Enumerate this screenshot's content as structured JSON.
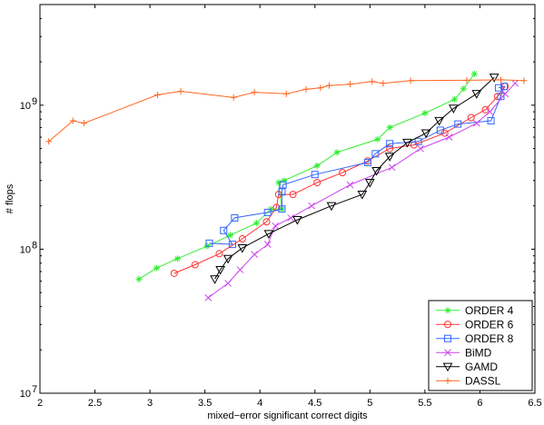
{
  "chart_data": {
    "type": "line",
    "xlabel": "mixed−error significant correct digits",
    "ylabel": "# flops",
    "xlim": [
      2,
      6.5
    ],
    "ylim": [
      10000000,
      5000000000
    ],
    "yscale": "log",
    "x_ticks": [
      2,
      2.5,
      3,
      3.5,
      4,
      4.5,
      5,
      5.5,
      6,
      6.5
    ],
    "x_tick_labels": [
      "2",
      "2.5",
      "3",
      "3.5",
      "4",
      "4.5",
      "5",
      "5.5",
      "6",
      "6.5"
    ],
    "y_ticks": [
      10000000,
      100000000,
      1000000000
    ],
    "y_tick_labels": [
      {
        "base": "10",
        "exp": "7"
      },
      {
        "base": "10",
        "exp": "8"
      },
      {
        "base": "10",
        "exp": "9"
      }
    ],
    "grid": false,
    "legend_position": "bottom-right",
    "series": [
      {
        "name": "ORDER 4",
        "color": "#33ee33",
        "marker": "asterisk",
        "x": [
          2.9,
          3.06,
          3.25,
          3.52,
          3.73,
          3.97,
          4.1,
          4.2,
          4.17,
          4.22,
          4.52,
          4.7,
          5.07,
          5.18,
          5.5,
          5.77,
          5.85,
          5.95
        ],
        "y": [
          62000000,
          74000000,
          86000000,
          105000000,
          125000000,
          152000000,
          190000000,
          190000000,
          290000000,
          300000000,
          380000000,
          470000000,
          580000000,
          700000000,
          880000000,
          1100000000,
          1300000000,
          1650000000
        ]
      },
      {
        "name": "ORDER 6",
        "color": "#ff3333",
        "marker": "circle",
        "x": [
          3.22,
          3.41,
          3.63,
          3.84,
          4.06,
          4.15,
          4.17,
          4.3,
          4.52,
          4.75,
          4.98,
          5.18,
          5.4,
          5.68,
          5.92,
          6.05,
          6.16,
          6.23
        ],
        "y": [
          68000000,
          78000000,
          93000000,
          118000000,
          155000000,
          195000000,
          240000000,
          240000000,
          290000000,
          340000000,
          410000000,
          500000000,
          530000000,
          640000000,
          820000000,
          930000000,
          1150000000,
          1350000000
        ]
      },
      {
        "name": "ORDER 8",
        "color": "#3366ff",
        "marker": "square",
        "x": [
          3.54,
          3.75,
          3.67,
          3.77,
          4.07,
          4.2,
          4.2,
          4.21,
          4.5,
          4.98,
          5.05,
          5.18,
          5.44,
          5.64,
          5.8,
          6.1,
          6.19,
          6.22,
          6.17
        ],
        "y": [
          110000000,
          108000000,
          135000000,
          165000000,
          180000000,
          190000000,
          250000000,
          280000000,
          330000000,
          400000000,
          460000000,
          540000000,
          560000000,
          670000000,
          740000000,
          780000000,
          1150000000,
          1350000000,
          1320000000
        ]
      },
      {
        "name": "BiMD",
        "color": "#cc44ee",
        "marker": "x",
        "x": [
          3.53,
          3.71,
          3.82,
          3.95,
          4.07,
          4.14,
          4.28,
          4.47,
          4.82,
          5.2,
          5.46,
          5.72,
          5.97,
          6.09,
          6.23,
          6.32
        ],
        "y": [
          46000000,
          58000000,
          72000000,
          92000000,
          108000000,
          145000000,
          165000000,
          200000000,
          280000000,
          370000000,
          500000000,
          600000000,
          750000000,
          900000000,
          1200000000,
          1420000000
        ]
      },
      {
        "name": "GAMD",
        "color": "#000000",
        "marker": "triangle-down",
        "x": [
          3.59,
          3.64,
          3.71,
          3.84,
          4.08,
          4.34,
          4.65,
          4.93,
          5.0,
          5.06,
          5.18,
          5.34,
          5.51,
          5.63,
          5.76,
          5.97,
          6.13
        ],
        "y": [
          62000000,
          72000000,
          86000000,
          102000000,
          128000000,
          160000000,
          200000000,
          240000000,
          290000000,
          350000000,
          440000000,
          550000000,
          640000000,
          780000000,
          950000000,
          1200000000,
          1560000000
        ]
      },
      {
        "name": "DASSL",
        "color": "#ff6622",
        "marker": "plus",
        "x": [
          2.08,
          2.3,
          2.4,
          3.07,
          3.28,
          3.76,
          3.95,
          4.24,
          4.42,
          4.55,
          4.63,
          4.82,
          5.02,
          5.12,
          5.37,
          5.88,
          6.19,
          6.4
        ],
        "y": [
          560000000,
          780000000,
          750000000,
          1180000000,
          1250000000,
          1130000000,
          1230000000,
          1200000000,
          1290000000,
          1320000000,
          1370000000,
          1400000000,
          1460000000,
          1420000000,
          1480000000,
          1490000000,
          1500000000,
          1480000000
        ]
      }
    ]
  }
}
